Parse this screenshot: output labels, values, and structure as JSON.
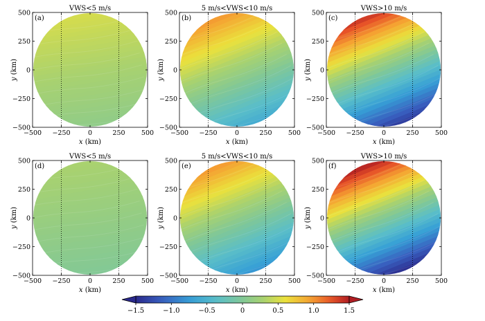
{
  "figure": {
    "xlabel_var": "x",
    "xlabel_unit": "(km)",
    "ylabel_var": "y",
    "ylabel_unit": "(km)",
    "ticks": [
      -500,
      -250,
      0,
      250,
      500
    ],
    "tick_labels": [
      "−500",
      "−250",
      "0",
      "250",
      "500"
    ]
  },
  "chart_data": [
    {
      "type": "heatmap",
      "panel": "(a)",
      "title": "VWS<5  m/s",
      "xlim": [
        -500,
        500
      ],
      "ylim": [
        -500,
        500
      ],
      "field_range": [
        0.1,
        0.5
      ],
      "gradient_direction": "south-to-north, weak",
      "grid": "dotted at ±250"
    },
    {
      "type": "heatmap",
      "panel": "(b)",
      "title": "5  m/s<VWS<10  m/s",
      "xlim": [
        -500,
        500
      ],
      "ylim": [
        -500,
        500
      ],
      "field_range": [
        -0.6,
        1.0
      ],
      "gradient_direction": "south-southeast (low) to northwest (high)",
      "grid": "dotted at ±250"
    },
    {
      "type": "heatmap",
      "panel": "(c)",
      "title": "VWS>10  m/s",
      "xlim": [
        -500,
        500
      ],
      "ylim": [
        -500,
        500
      ],
      "field_range": [
        -1.4,
        1.4
      ],
      "gradient_direction": "south-southeast (low) to northwest (high)",
      "grid": "dotted at ±250"
    },
    {
      "type": "heatmap",
      "panel": "(d)",
      "title": "VWS<5  m/s",
      "xlim": [
        -500,
        500
      ],
      "ylim": [
        -500,
        500
      ],
      "field_range": [
        0.0,
        0.3
      ],
      "gradient_direction": "nearly uniform",
      "grid": "dotted at ±250"
    },
    {
      "type": "heatmap",
      "panel": "(e)",
      "title": "5  m/s<VWS<10  m/s",
      "xlim": [
        -500,
        500
      ],
      "ylim": [
        -500,
        500
      ],
      "field_range": [
        -0.8,
        1.0
      ],
      "gradient_direction": "south-southeast (low) to northwest (high)",
      "grid": "dotted at ±250"
    },
    {
      "type": "heatmap",
      "panel": "(f)",
      "title": "VWS>10  m/s",
      "xlim": [
        -500,
        500
      ],
      "ylim": [
        -500,
        500
      ],
      "field_range": [
        -1.5,
        1.5
      ],
      "gradient_direction": "south-southeast (low) to northwest (high)",
      "grid": "dotted at ±250"
    }
  ],
  "colorbar": {
    "range": [
      -1.5,
      1.5
    ],
    "ticks": [
      -1.5,
      -1.0,
      -0.5,
      0,
      0.5,
      1.0,
      1.5
    ],
    "tick_labels": [
      "−1.5",
      "−1.0",
      "−0.5",
      "0",
      "0.5",
      "1.0",
      "1.5"
    ],
    "colormap": "blue-cyan-green-yellow-red",
    "extend": "both"
  }
}
